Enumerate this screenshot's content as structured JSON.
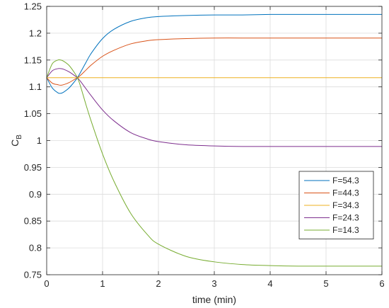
{
  "chart_data": {
    "type": "line",
    "title": "",
    "xlabel": "time (min)",
    "ylabel": {
      "main": "C",
      "subscript": "B"
    },
    "xlim": [
      0,
      6
    ],
    "ylim": [
      0.75,
      1.25
    ],
    "x_ticks": [
      0,
      1,
      2,
      3,
      4,
      5,
      6
    ],
    "x_tick_labels": [
      "0",
      "1",
      "2",
      "3",
      "4",
      "5",
      "6"
    ],
    "y_ticks": [
      0.75,
      0.8,
      0.85,
      0.9,
      0.95,
      1,
      1.05,
      1.1,
      1.15,
      1.2,
      1.25
    ],
    "y_tick_labels": [
      "0.75",
      "0.8",
      "0.85",
      "0.9",
      "0.95",
      "1",
      "1.05",
      "1.1",
      "1.15",
      "1.2",
      "1.25"
    ],
    "grid": true,
    "legend_position": "lower-right",
    "x": [
      0,
      0.1,
      0.2,
      0.25,
      0.3,
      0.4,
      0.5,
      0.55,
      0.6,
      0.7,
      0.8,
      1.0,
      1.2,
      1.5,
      1.8,
      2.0,
      2.5,
      3.0,
      3.5,
      4.0,
      4.5,
      5.0,
      5.5,
      6.0
    ],
    "series": [
      {
        "name": "F=54.3",
        "color": "#0072BD",
        "values": [
          1.117,
          1.098,
          1.089,
          1.088,
          1.09,
          1.098,
          1.11,
          1.117,
          1.126,
          1.145,
          1.163,
          1.19,
          1.207,
          1.222,
          1.229,
          1.231,
          1.233,
          1.234,
          1.234,
          1.235,
          1.235,
          1.235,
          1.235,
          1.235
        ]
      },
      {
        "name": "F=44.3",
        "color": "#D95319",
        "values": [
          1.117,
          1.107,
          1.104,
          1.103,
          1.104,
          1.108,
          1.114,
          1.117,
          1.121,
          1.131,
          1.141,
          1.157,
          1.168,
          1.18,
          1.186,
          1.188,
          1.19,
          1.191,
          1.191,
          1.191,
          1.191,
          1.191,
          1.191,
          1.191
        ]
      },
      {
        "name": "F=34.3",
        "color": "#EDB120",
        "values": [
          1.117,
          1.117,
          1.117,
          1.117,
          1.117,
          1.117,
          1.117,
          1.117,
          1.117,
          1.117,
          1.117,
          1.117,
          1.117,
          1.117,
          1.117,
          1.117,
          1.117,
          1.117,
          1.117,
          1.117,
          1.117,
          1.117,
          1.117,
          1.117
        ]
      },
      {
        "name": "F=24.3",
        "color": "#7E2F8E",
        "values": [
          1.117,
          1.13,
          1.134,
          1.134,
          1.133,
          1.128,
          1.121,
          1.117,
          1.111,
          1.097,
          1.083,
          1.057,
          1.037,
          1.015,
          1.003,
          0.998,
          0.992,
          0.99,
          0.989,
          0.989,
          0.989,
          0.989,
          0.989,
          0.989
        ]
      },
      {
        "name": "F=14.3",
        "color": "#77AC30",
        "values": [
          1.117,
          1.143,
          1.15,
          1.15,
          1.148,
          1.14,
          1.126,
          1.117,
          1.103,
          1.068,
          1.035,
          0.975,
          0.925,
          0.865,
          0.825,
          0.807,
          0.784,
          0.774,
          0.769,
          0.767,
          0.766,
          0.766,
          0.766,
          0.766
        ]
      }
    ]
  }
}
